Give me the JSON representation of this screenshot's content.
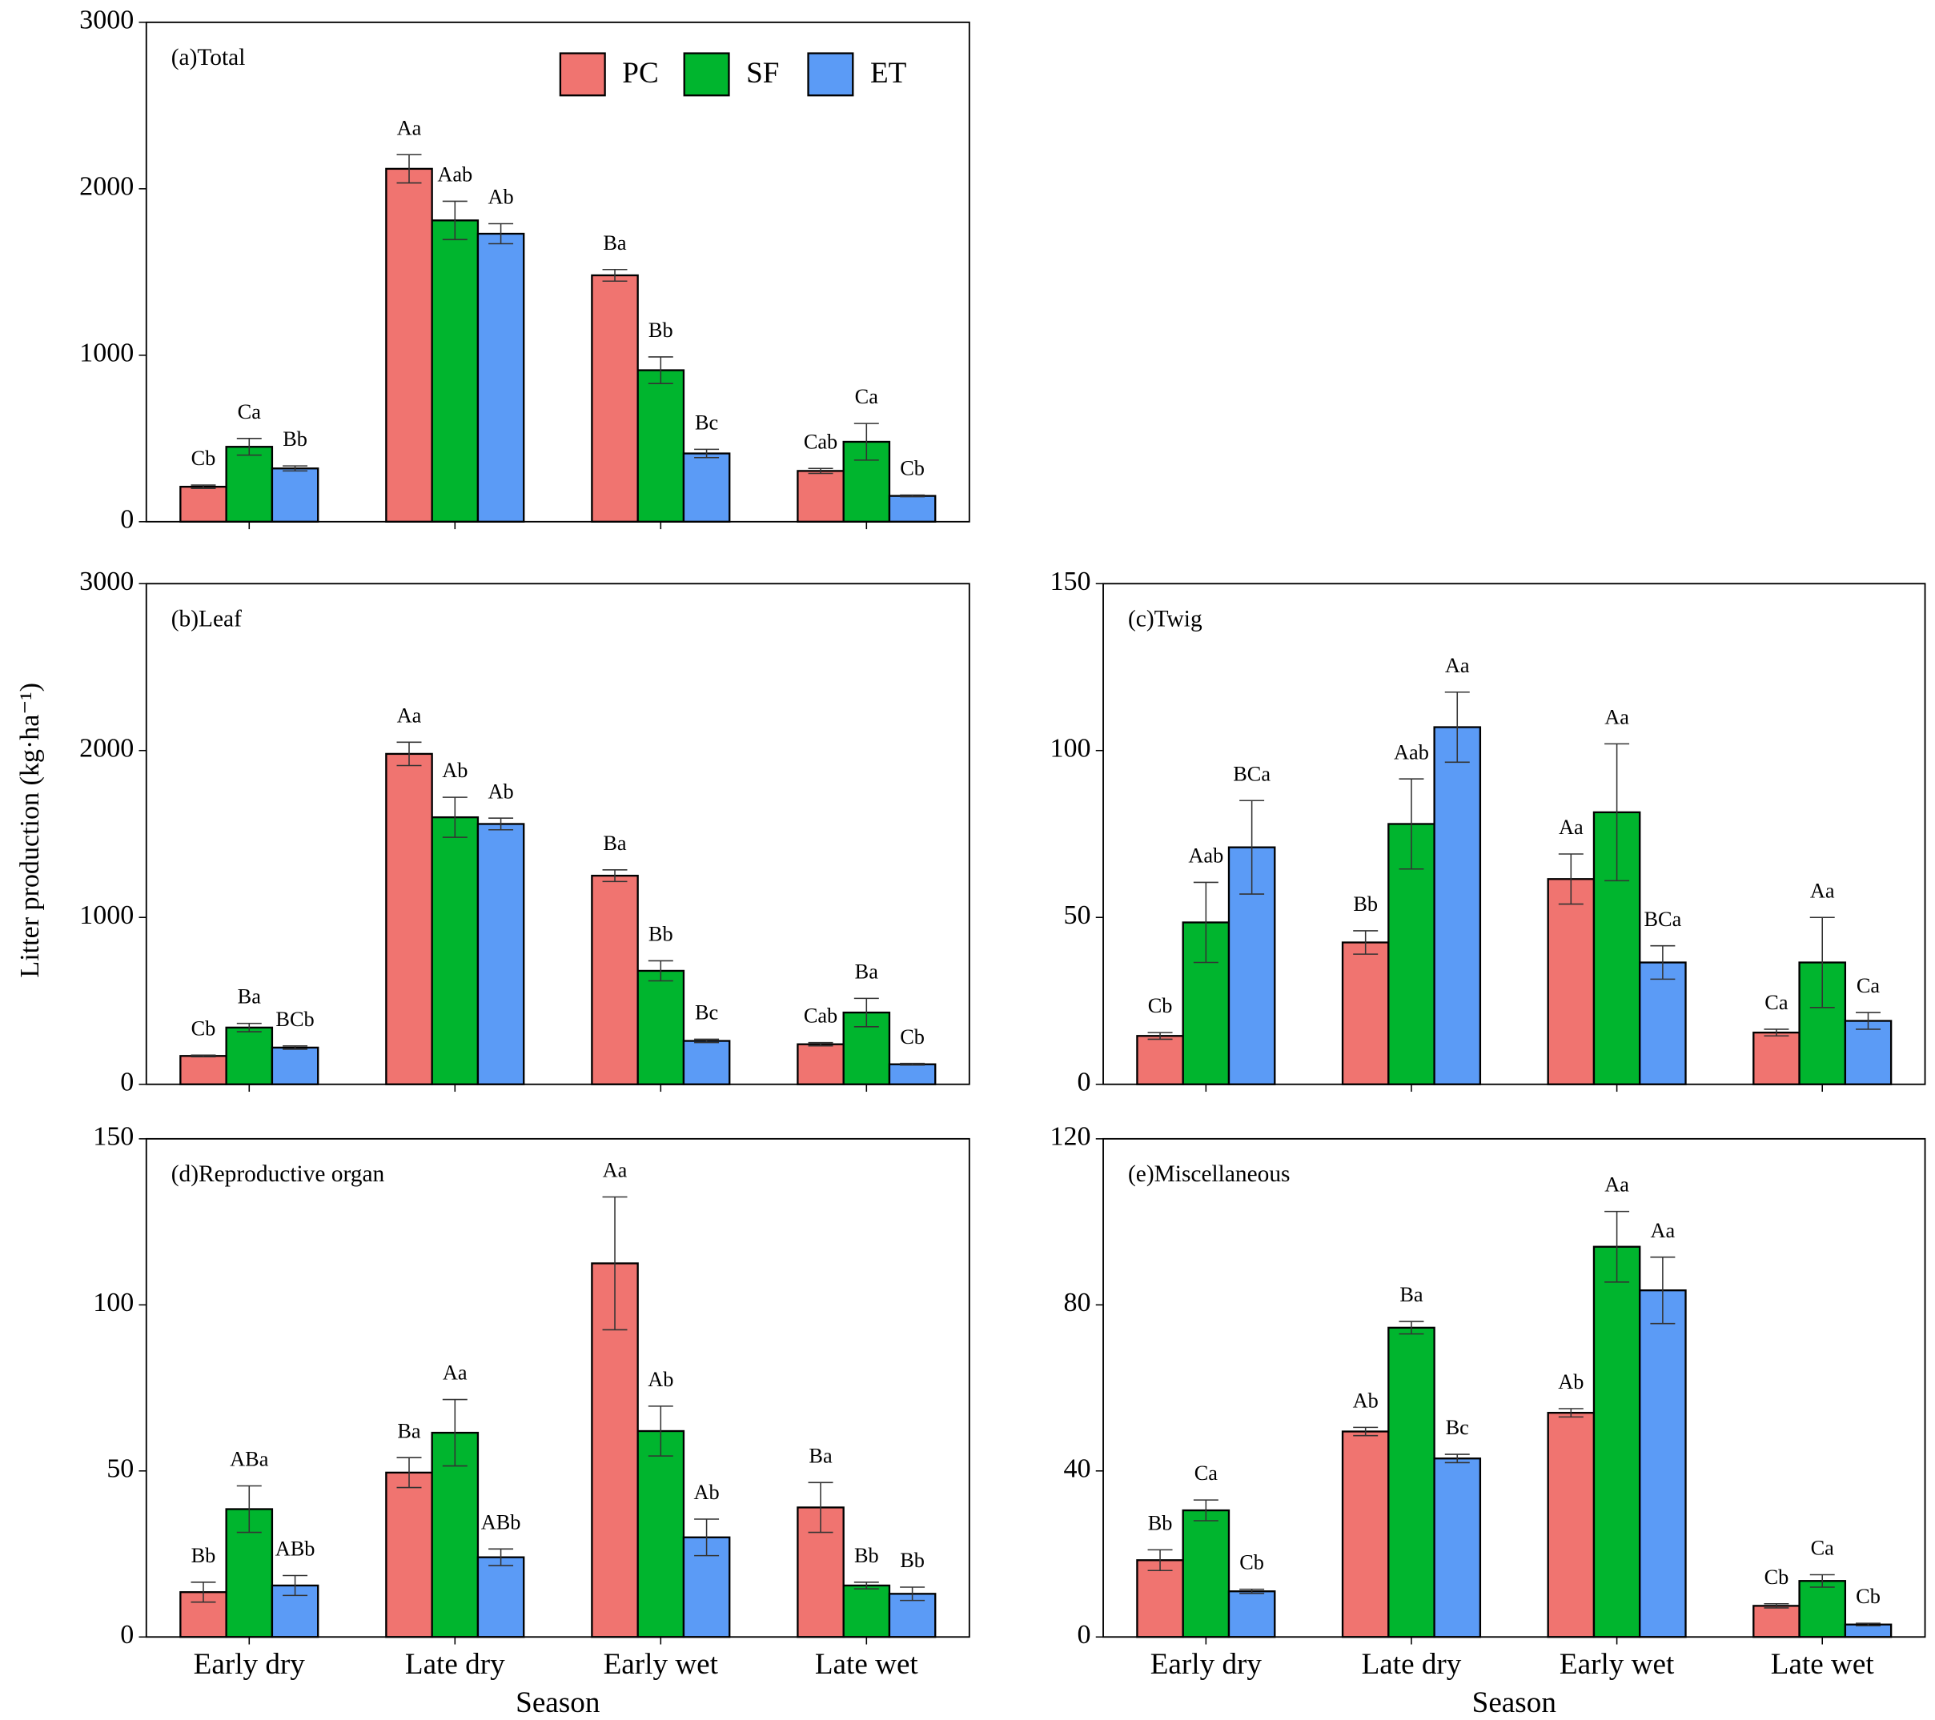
{
  "ylabel": "Litter production (kg·ha⁻¹)",
  "chart_data": [
    {
      "type": "bar",
      "title": "(a)Total",
      "categories": [
        null,
        null,
        null,
        null
      ],
      "legend": "upper right",
      "ylim": [
        0,
        3000
      ],
      "yticks": [
        0,
        1000,
        2000,
        3000
      ],
      "series": [
        {
          "name": "PC",
          "color": "#f07470",
          "values": [
            210,
            2120,
            1480,
            305
          ],
          "errors": [
            10,
            85,
            35,
            15
          ],
          "letters": [
            "Cb",
            "Aa",
            "Ba",
            "Cab"
          ]
        },
        {
          "name": "SF",
          "color": "#00b52e",
          "values": [
            450,
            1810,
            910,
            480
          ],
          "errors": [
            50,
            115,
            80,
            110
          ],
          "letters": [
            "Ca",
            "Aab",
            "Bb",
            "Ca"
          ]
        },
        {
          "name": "ET",
          "color": "#5b9bf6",
          "values": [
            320,
            1730,
            410,
            155
          ],
          "errors": [
            15,
            60,
            25,
            5
          ],
          "letters": [
            "Bb",
            "Ab",
            "Bc",
            "Cb"
          ]
        }
      ]
    },
    {
      "type": "bar",
      "title": "(b)Leaf",
      "categories": [
        null,
        null,
        null,
        null
      ],
      "ylim": [
        0,
        3000
      ],
      "yticks": [
        0,
        1000,
        2000,
        3000
      ],
      "series": [
        {
          "name": "PC",
          "color": "#f07470",
          "values": [
            170,
            1980,
            1250,
            240
          ],
          "errors": [
            5,
            70,
            35,
            10
          ],
          "letters": [
            "Cb",
            "Aa",
            "Ba",
            "Cab"
          ]
        },
        {
          "name": "SF",
          "color": "#00b52e",
          "values": [
            340,
            1600,
            680,
            430
          ],
          "errors": [
            25,
            120,
            60,
            85
          ],
          "letters": [
            "Ba",
            "Ab",
            "Bb",
            "Ba"
          ]
        },
        {
          "name": "ET",
          "color": "#5b9bf6",
          "values": [
            220,
            1560,
            260,
            120
          ],
          "errors": [
            10,
            35,
            10,
            5
          ],
          "letters": [
            "BCb",
            "Ab",
            "Bc",
            "Cb"
          ]
        }
      ]
    },
    {
      "type": "bar",
      "title": "(c)Twig",
      "categories": [
        null,
        null,
        null,
        null
      ],
      "ylim": [
        0,
        150
      ],
      "yticks": [
        0,
        50,
        100,
        150
      ],
      "series": [
        {
          "name": "PC",
          "color": "#f07470",
          "values": [
            14.5,
            42.5,
            61.5,
            15.5
          ],
          "errors": [
            1,
            3.5,
            7.5,
            1
          ],
          "letters": [
            "Cb",
            "Bb",
            "Aa",
            "Ca"
          ]
        },
        {
          "name": "SF",
          "color": "#00b52e",
          "values": [
            48.5,
            78,
            81.5,
            36.5
          ],
          "errors": [
            12,
            13.5,
            20.5,
            13.5
          ],
          "letters": [
            "Aab",
            "Aab",
            "Aa",
            "Aa"
          ]
        },
        {
          "name": "ET",
          "color": "#5b9bf6",
          "values": [
            71,
            107,
            36.5,
            19
          ],
          "errors": [
            14,
            10.5,
            5,
            2.5
          ],
          "letters": [
            "BCa",
            "Aa",
            "BCa",
            "Ca"
          ]
        }
      ]
    },
    {
      "type": "bar",
      "title": "(d)Reproductive organ",
      "categories": [
        "Early dry",
        "Late dry",
        "Early wet",
        "Late wet"
      ],
      "xlabel": "Season",
      "ylim": [
        0,
        150
      ],
      "yticks": [
        0,
        50,
        100,
        150
      ],
      "series": [
        {
          "name": "PC",
          "color": "#f07470",
          "values": [
            13.5,
            49.5,
            112.5,
            39
          ],
          "errors": [
            3,
            4.5,
            20,
            7.5
          ],
          "letters": [
            "Bb",
            "Ba",
            "Aa",
            "Ba"
          ]
        },
        {
          "name": "SF",
          "color": "#00b52e",
          "values": [
            38.5,
            61.5,
            62,
            15.5
          ],
          "errors": [
            7,
            10,
            7.5,
            1
          ],
          "letters": [
            "ABa",
            "Aa",
            "Ab",
            "Bb"
          ]
        },
        {
          "name": "ET",
          "color": "#5b9bf6",
          "values": [
            15.5,
            24,
            30,
            13
          ],
          "errors": [
            3,
            2.5,
            5.5,
            2
          ],
          "letters": [
            "ABb",
            "ABb",
            "Ab",
            "Bb"
          ]
        }
      ]
    },
    {
      "type": "bar",
      "title": "(e)Miscellaneous",
      "categories": [
        "Early dry",
        "Late dry",
        "Early wet",
        "Late wet"
      ],
      "xlabel": "Season",
      "ylim": [
        0,
        120
      ],
      "yticks": [
        0,
        40,
        80,
        120
      ],
      "series": [
        {
          "name": "PC",
          "color": "#f07470",
          "values": [
            18.5,
            49.5,
            54,
            7.5
          ],
          "errors": [
            2.5,
            1,
            1,
            0.5
          ],
          "letters": [
            "Bb",
            "Ab",
            "Ab",
            "Cb"
          ]
        },
        {
          "name": "SF",
          "color": "#00b52e",
          "values": [
            30.5,
            74.5,
            94,
            13.5
          ],
          "errors": [
            2.5,
            1.5,
            8.5,
            1.5
          ],
          "letters": [
            "Ca",
            "Ba",
            "Aa",
            "Ca"
          ]
        },
        {
          "name": "ET",
          "color": "#5b9bf6",
          "values": [
            11,
            43,
            83.5,
            3
          ],
          "errors": [
            0.5,
            1,
            8,
            0.3
          ],
          "letters": [
            "Cb",
            "Bc",
            "Aa",
            "Cb"
          ]
        }
      ]
    }
  ]
}
